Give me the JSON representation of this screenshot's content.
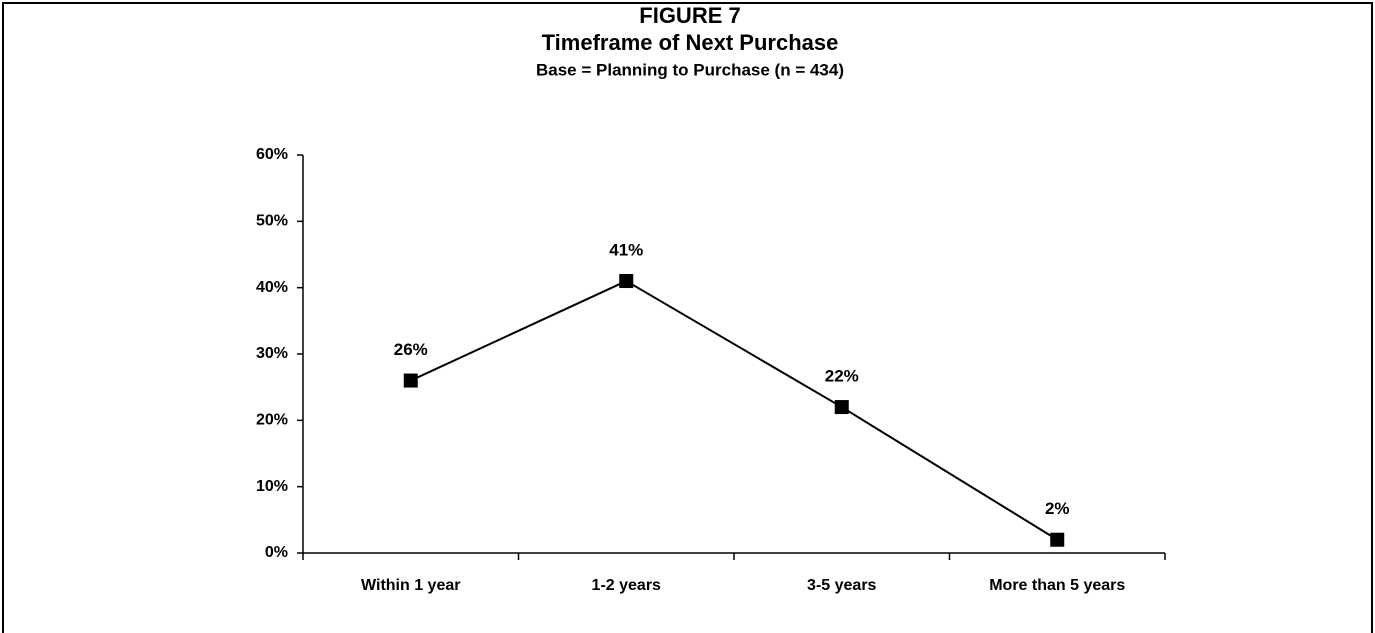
{
  "chart_data": {
    "type": "line",
    "title": "FIGURE 7",
    "subtitle": [
      "Timeframe of Next Purchase",
      "Base = Planning to Purchase (n = 434)"
    ],
    "categories": [
      "Within 1 year",
      "1-2 years",
      "3-5 years",
      "More than 5 years"
    ],
    "values": [
      26,
      41,
      22,
      2
    ],
    "value_labels": [
      "26%",
      "41%",
      "22%",
      "2%"
    ],
    "color": "#000000",
    "ylim": [
      0,
      60
    ],
    "yticks": [
      {
        "value": 0,
        "label": "0%"
      },
      {
        "value": 10,
        "label": "10%"
      },
      {
        "value": 20,
        "label": "20%"
      },
      {
        "value": 30,
        "label": "30%"
      },
      {
        "value": 40,
        "label": "40%"
      },
      {
        "value": 50,
        "label": "50%"
      },
      {
        "value": 60,
        "label": "60%"
      }
    ],
    "grid": false
  }
}
